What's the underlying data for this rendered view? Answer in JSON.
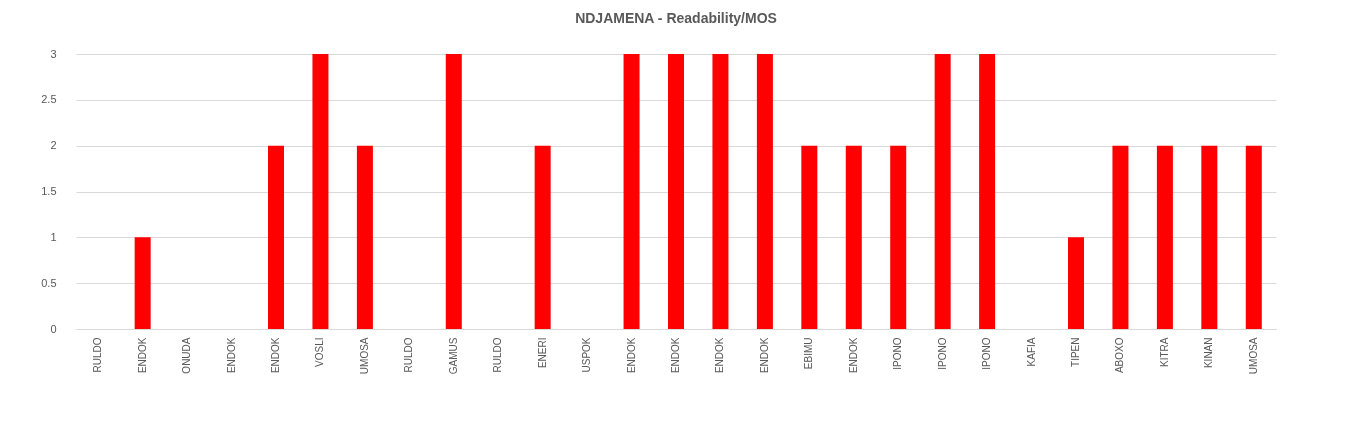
{
  "chart_data": {
    "type": "bar",
    "title": "NDJAMENA - Readability/MOS",
    "categories": [
      "RULDO",
      "ENDOK",
      "ONUDA",
      "ENDOK",
      "ENDOK",
      "VOSLI",
      "UMOSA",
      "RULDO",
      "GAMUS",
      "RULDO",
      "ENERI",
      "USPOK",
      "ENDOK",
      "ENDOK",
      "ENDOK",
      "ENDOK",
      "EBIMU",
      "ENDOK",
      "IPONO",
      "IPONO",
      "IPONO",
      "KAFIA",
      "TIPEN",
      "ABOXO",
      "KITRA",
      "KINAN",
      "UMOSA"
    ],
    "values": [
      0,
      1,
      0,
      0,
      2,
      3,
      2,
      0,
      3,
      0,
      2,
      0,
      3,
      3,
      3,
      3,
      2,
      2,
      2,
      3,
      3,
      0,
      1,
      2,
      2,
      2,
      2
    ],
    "color": "#ff0000",
    "ylim": [
      0,
      3
    ],
    "yticks": [
      0,
      0.5,
      1,
      1.5,
      2,
      2.5,
      3
    ],
    "grid": "y"
  }
}
